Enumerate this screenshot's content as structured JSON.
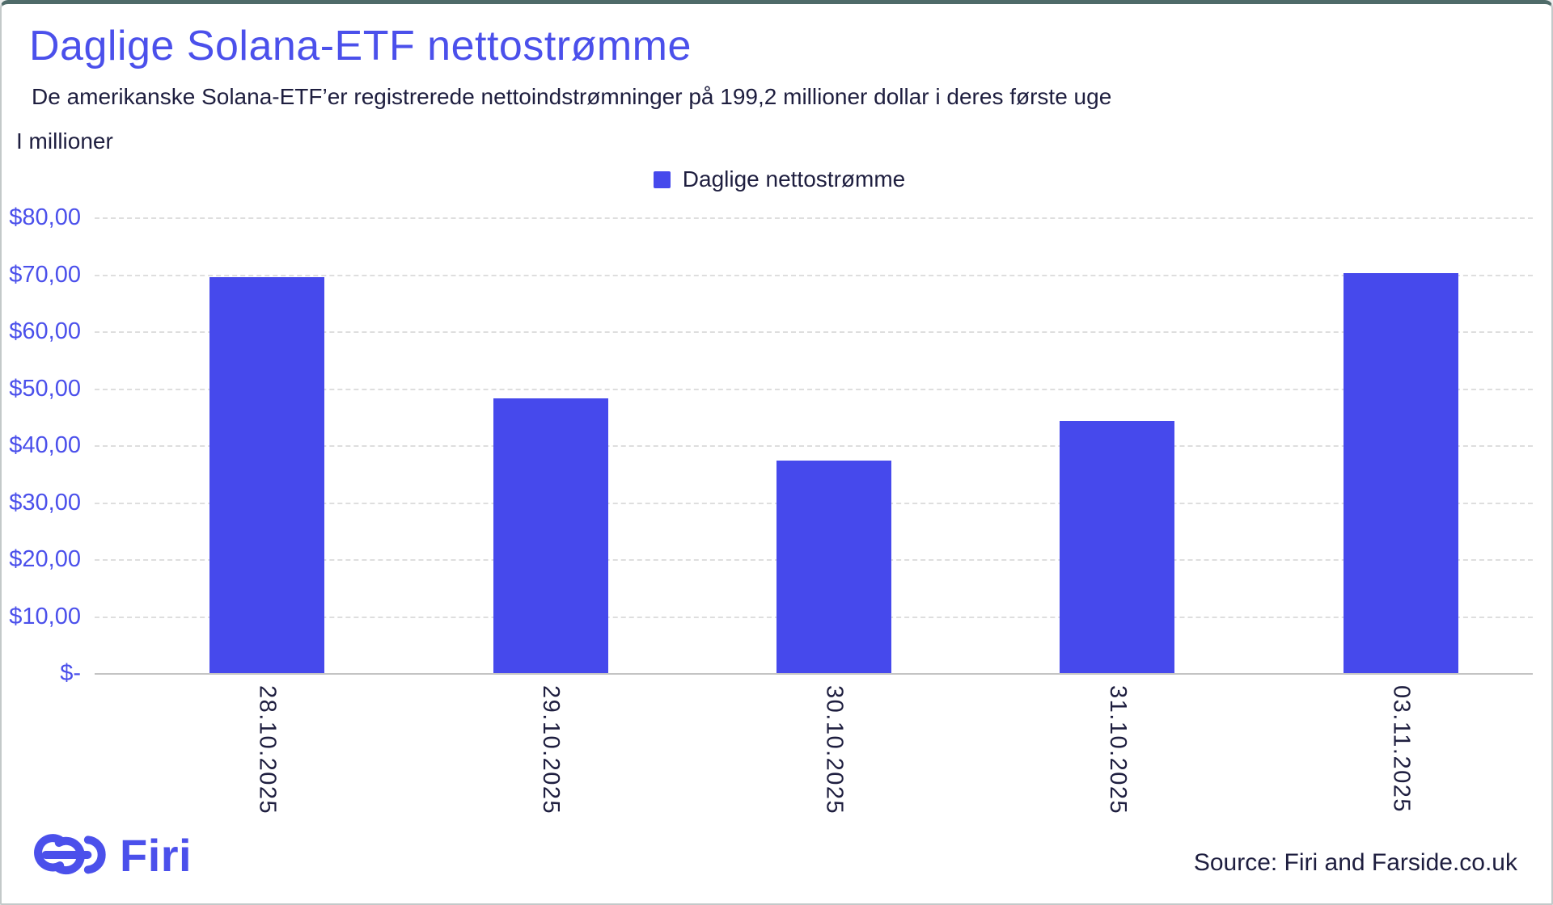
{
  "header": {
    "title": "Daglige Solana-ETF nettostrømme",
    "subtitle": "De amerikanske Solana-ETF’er registrerede nettoindstrømninger på 199,2 millioner dollar i deres første uge"
  },
  "chart_data": {
    "type": "bar",
    "title": "Daglige Solana-ETF nettostrømme",
    "unit_label": "I millioner",
    "legend": [
      "Daglige nettostrømme"
    ],
    "legend_position": "top-center",
    "categories": [
      "28.10.2025",
      "29.10.2025",
      "30.10.2025",
      "31.10.2025",
      "03.11.2025"
    ],
    "values": [
      69.5,
      48.2,
      37.3,
      44.2,
      70.2
    ],
    "xlabel": "",
    "ylabel": "I millioner",
    "ylim": [
      0,
      80
    ],
    "y_tick_step": 10,
    "y_tick_labels_bottom_to_top": [
      "$-",
      "$10,00",
      "$20,00",
      "$30,00",
      "$40,00",
      "$50,00",
      "$60,00",
      "$70,00",
      "$80,00"
    ],
    "grid": true,
    "gridline_style": "dashed"
  },
  "footer": {
    "logo_text": "Firi",
    "source": "Source: Firi and Farside.co.uk"
  },
  "colors": {
    "accent_blue": "#4B50EB",
    "bar_blue": "#4649EC",
    "text_dark": "#1E1E3F",
    "gridline": "#DEDEDE",
    "axis_line": "#C4C4C4",
    "background": "#FFFFFF"
  }
}
